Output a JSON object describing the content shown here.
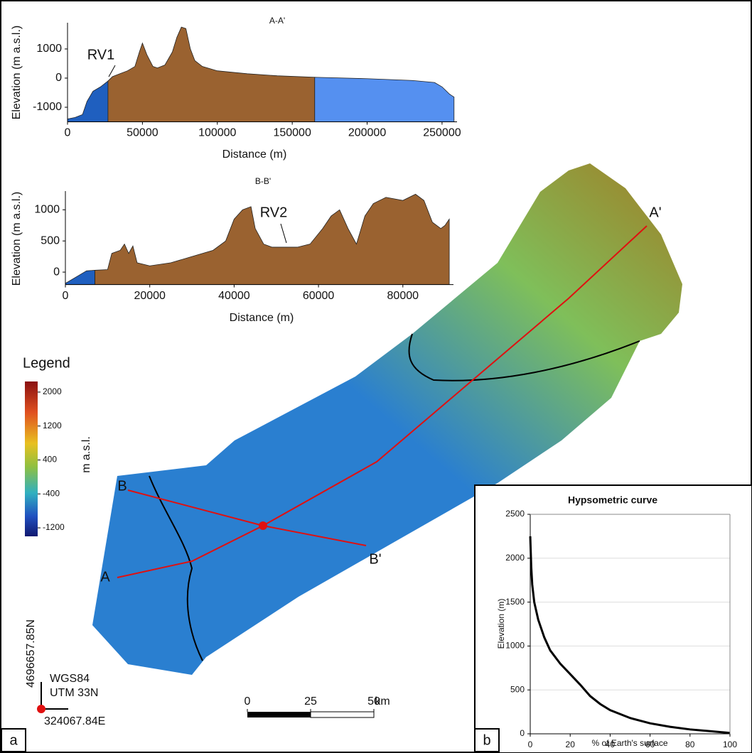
{
  "chart_data": [
    {
      "type": "area",
      "title": "A-A'",
      "xlabel": "Distance (m)",
      "ylabel": "Elevation (m a.s.l.)",
      "annotation": "RV1",
      "xlim": [
        0,
        260000
      ],
      "ylim": [
        -1500,
        1900
      ],
      "xticks": [
        0,
        50000,
        100000,
        150000,
        200000,
        250000
      ],
      "yticks": [
        -1000,
        0,
        1000
      ],
      "series": [
        {
          "color": "#1f5fbf",
          "x": [
            0,
            5000,
            10000,
            13000,
            17000,
            22000,
            27000
          ],
          "values": [
            -1400,
            -1350,
            -1250,
            -800,
            -450,
            -300,
            -100
          ]
        },
        {
          "color": "#9a6230",
          "x": [
            27000,
            30000,
            35000,
            40000,
            45000,
            48000,
            50000,
            53000,
            57000,
            60000,
            65000,
            70000,
            73000,
            76000,
            79000,
            82000,
            85000,
            90000,
            100000,
            120000,
            140000,
            165000
          ],
          "values": [
            -100,
            50,
            150,
            250,
            400,
            900,
            1200,
            800,
            400,
            350,
            450,
            900,
            1400,
            1750,
            1700,
            1000,
            600,
            400,
            250,
            150,
            80,
            30
          ]
        },
        {
          "color": "#5590f0",
          "x": [
            165000,
            200000,
            230000,
            245000,
            250000,
            255000,
            258000
          ],
          "values": [
            30,
            -20,
            -80,
            -150,
            -300,
            -550,
            -650
          ]
        }
      ]
    },
    {
      "type": "area",
      "title": "B-B'",
      "xlabel": "Distance (m)",
      "ylabel": "Elevation (m a.s.l.)",
      "annotation": "RV2",
      "xlim": [
        0,
        92000
      ],
      "ylim": [
        -200,
        1300
      ],
      "xticks": [
        0,
        20000,
        40000,
        60000,
        80000
      ],
      "yticks": [
        0,
        500,
        1000
      ],
      "series": [
        {
          "color": "#1f5fbf",
          "x": [
            0,
            3000,
            5000,
            7000
          ],
          "values": [
            -180,
            -60,
            20,
            30
          ]
        },
        {
          "color": "#9a6230",
          "x": [
            7000,
            10000,
            11000,
            13000,
            14000,
            15000,
            16000,
            17000,
            20000,
            25000,
            30000,
            35000,
            38000,
            40000,
            42000,
            44000,
            45000,
            47000,
            49000,
            55000,
            58000,
            61000,
            63000,
            65000,
            67000,
            69000,
            71000,
            73000,
            76000,
            80000,
            83000,
            85000,
            87000,
            89000,
            90000,
            91000
          ],
          "values": [
            30,
            40,
            300,
            350,
            450,
            300,
            420,
            150,
            100,
            150,
            250,
            350,
            500,
            850,
            1000,
            1050,
            700,
            450,
            400,
            400,
            450,
            700,
            900,
            1000,
            700,
            450,
            900,
            1100,
            1200,
            1150,
            1250,
            1150,
            800,
            700,
            750,
            850
          ]
        }
      ]
    },
    {
      "type": "line",
      "title": "Hypsometric curve",
      "xlabel": "% of Earth's surface",
      "ylabel": "Elevation (m)",
      "grid": true,
      "xlim": [
        0,
        100
      ],
      "ylim": [
        0,
        2500
      ],
      "xticks": [
        0,
        20,
        40,
        60,
        80,
        100
      ],
      "yticks": [
        0,
        500,
        1000,
        1500,
        2000,
        2500
      ],
      "series": [
        {
          "color": "#000000",
          "x": [
            0,
            0.5,
            1,
            2,
            4,
            7,
            10,
            15,
            20,
            25,
            30,
            35,
            40,
            50,
            60,
            70,
            80,
            90,
            100
          ],
          "values": [
            2250,
            1900,
            1700,
            1500,
            1300,
            1100,
            950,
            800,
            680,
            560,
            430,
            340,
            270,
            180,
            120,
            80,
            50,
            30,
            10
          ]
        }
      ]
    }
  ],
  "map": {
    "legend_title": "Legend",
    "legend_unit": "m a.s.l.",
    "clim": [
      -1400,
      2250
    ],
    "legend_ticks": [
      2000,
      1200,
      400,
      -400,
      -1200
    ],
    "points": [
      "A",
      "A'",
      "B",
      "B'"
    ],
    "northing": "4696657.85N",
    "easting": "324067.84E",
    "datum": "WGS84",
    "projection": "UTM 33N",
    "scale_ticks": [
      0,
      25,
      50
    ],
    "scale_unit": "km",
    "panels": [
      "a",
      "b"
    ]
  }
}
